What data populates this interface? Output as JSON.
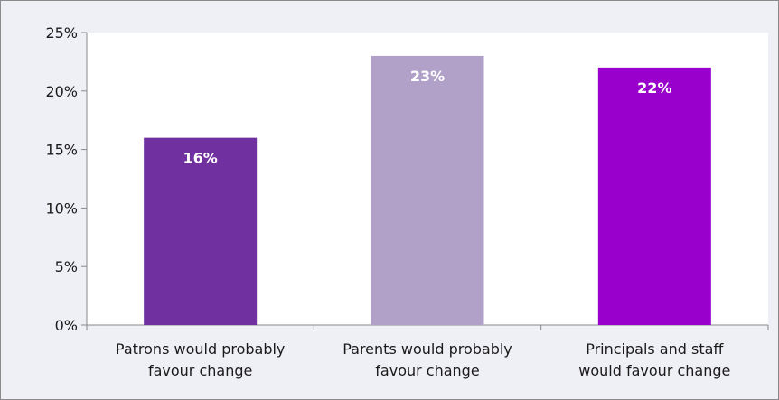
{
  "chart_data": {
    "type": "bar",
    "categories": [
      [
        "Patrons would probably",
        "favour change"
      ],
      [
        "Parents would probably",
        "favour change"
      ],
      [
        "Principals and staff",
        "would favour change"
      ]
    ],
    "values": [
      16,
      23,
      22
    ],
    "data_labels": [
      "16%",
      "23%",
      "22%"
    ],
    "bar_colors": [
      "#7030a0",
      "#b1a0c7",
      "#9900cc"
    ],
    "ylim": [
      0,
      25
    ],
    "yticks": [
      0,
      5,
      10,
      15,
      20,
      25
    ],
    "ytick_labels": [
      "0%",
      "5%",
      "10%",
      "15%",
      "20%",
      "25%"
    ],
    "grid": false,
    "legend": "none",
    "title": "",
    "xlabel": "",
    "ylabel": ""
  },
  "colors": {
    "chart_background": "#efeff6",
    "plot_background": "#ffffff",
    "axis": "#8a8a8a"
  }
}
